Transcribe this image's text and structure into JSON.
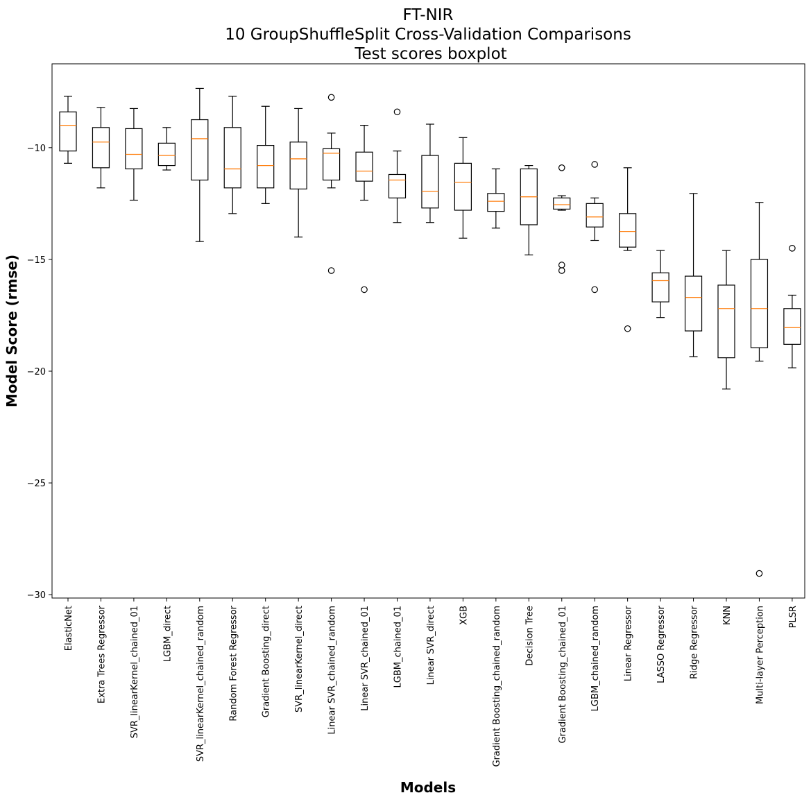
{
  "chart_data": {
    "type": "boxplot",
    "title": [
      "FT-NIR",
      "10 GroupShuffleSplit Cross-Validation Comparisons",
      "Test scores boxplot"
    ],
    "xlabel": "Models",
    "ylabel": "Model Score (rmse)",
    "ylim": [
      -30.15,
      -6.25
    ],
    "yticks": [
      -10,
      -15,
      -20,
      -25,
      -30
    ],
    "grid": false,
    "box_color": "#000000",
    "median_color": "#ff7f0e",
    "categories": [
      "ElasticNet",
      "Extra Trees Regressor",
      "SVR_linearKernel_chained_01",
      "LGBM_direct",
      "SVR_linearKernel_chained_random",
      "Random Forest Regressor",
      "Gradient Boosting_direct",
      "SVR_linearKernel_direct",
      "Linear SVR_chained_random",
      "Linear SVR_chained_01",
      "LGBM_chained_01",
      "Linear SVR_direct",
      "XGB",
      "Gradient Boosting_chained_random",
      "Decision Tree",
      "Gradient Boosting_chained_01",
      "LGBM_chained_random",
      "Linear Regressor",
      "LASSO Regressor",
      "Ridge Regressor",
      "KNN",
      "Multi-layer Perception",
      "PLSR"
    ],
    "boxes": [
      {
        "whislo": -10.7,
        "q1": -10.15,
        "med": -9.0,
        "q3": -8.4,
        "whishi": -7.7,
        "fliers": []
      },
      {
        "whislo": -11.8,
        "q1": -10.9,
        "med": -9.75,
        "q3": -9.1,
        "whishi": -8.2,
        "fliers": []
      },
      {
        "whislo": -12.35,
        "q1": -10.95,
        "med": -10.3,
        "q3": -9.15,
        "whishi": -8.25,
        "fliers": []
      },
      {
        "whislo": -11.0,
        "q1": -10.8,
        "med": -10.35,
        "q3": -9.8,
        "whishi": -9.1,
        "fliers": []
      },
      {
        "whislo": -14.2,
        "q1": -11.45,
        "med": -9.6,
        "q3": -8.75,
        "whishi": -7.35,
        "fliers": []
      },
      {
        "whislo": -12.95,
        "q1": -11.8,
        "med": -10.95,
        "q3": -9.1,
        "whishi": -7.7,
        "fliers": []
      },
      {
        "whislo": -12.5,
        "q1": -11.8,
        "med": -10.8,
        "q3": -9.9,
        "whishi": -8.15,
        "fliers": []
      },
      {
        "whislo": -14.0,
        "q1": -11.85,
        "med": -10.5,
        "q3": -9.75,
        "whishi": -8.25,
        "fliers": []
      },
      {
        "whislo": -11.8,
        "q1": -11.45,
        "med": -10.25,
        "q3": -10.05,
        "whishi": -9.35,
        "fliers": [
          -7.75,
          -15.5
        ]
      },
      {
        "whislo": -12.35,
        "q1": -11.5,
        "med": -11.05,
        "q3": -10.2,
        "whishi": -9.0,
        "fliers": [
          -16.35
        ]
      },
      {
        "whislo": -13.35,
        "q1": -12.25,
        "med": -11.45,
        "q3": -11.2,
        "whishi": -10.15,
        "fliers": [
          -8.4
        ]
      },
      {
        "whislo": -13.35,
        "q1": -12.7,
        "med": -11.95,
        "q3": -10.35,
        "whishi": -8.95,
        "fliers": []
      },
      {
        "whislo": -14.05,
        "q1": -12.8,
        "med": -11.55,
        "q3": -10.7,
        "whishi": -9.55,
        "fliers": []
      },
      {
        "whislo": -13.6,
        "q1": -12.85,
        "med": -12.4,
        "q3": -12.05,
        "whishi": -10.95,
        "fliers": []
      },
      {
        "whislo": -14.8,
        "q1": -13.45,
        "med": -12.2,
        "q3": -10.95,
        "whishi": -10.8,
        "fliers": []
      },
      {
        "whislo": -12.8,
        "q1": -12.75,
        "med": -12.55,
        "q3": -12.25,
        "whishi": -12.15,
        "fliers": [
          -10.9,
          -15.25,
          -15.5
        ]
      },
      {
        "whislo": -14.15,
        "q1": -13.55,
        "med": -13.1,
        "q3": -12.5,
        "whishi": -12.25,
        "fliers": [
          -10.75,
          -16.35
        ]
      },
      {
        "whislo": -14.6,
        "q1": -14.45,
        "med": -13.75,
        "q3": -12.95,
        "whishi": -10.9,
        "fliers": [
          -18.1
        ]
      },
      {
        "whislo": -17.6,
        "q1": -16.9,
        "med": -15.95,
        "q3": -15.6,
        "whishi": -14.6,
        "fliers": []
      },
      {
        "whislo": -19.35,
        "q1": -18.2,
        "med": -16.7,
        "q3": -15.75,
        "whishi": -12.05,
        "fliers": []
      },
      {
        "whislo": -20.8,
        "q1": -19.4,
        "med": -17.2,
        "q3": -16.15,
        "whishi": -14.6,
        "fliers": []
      },
      {
        "whislo": -19.55,
        "q1": -18.95,
        "med": -17.2,
        "q3": -15.0,
        "whishi": -12.45,
        "fliers": [
          -29.05
        ]
      },
      {
        "whislo": -19.85,
        "q1": -18.8,
        "med": -18.05,
        "q3": -17.2,
        "whishi": -16.6,
        "fliers": [
          -14.5
        ]
      }
    ]
  }
}
